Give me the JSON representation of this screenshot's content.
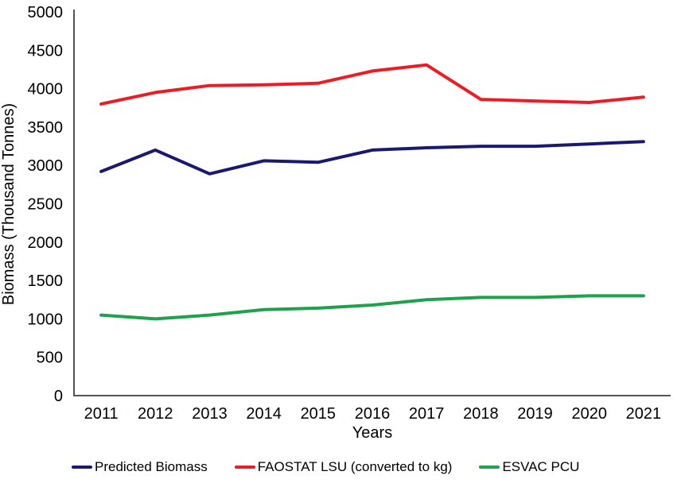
{
  "chart_data": {
    "type": "line",
    "title": "",
    "categories": [
      "2011",
      "2012",
      "2013",
      "2014",
      "2015",
      "2016",
      "2017",
      "2018",
      "2019",
      "2020",
      "2021"
    ],
    "series": [
      {
        "name": "Predicted Biomass",
        "color": "#191970",
        "values": [
          2920,
          3200,
          2890,
          3060,
          3040,
          3200,
          3230,
          3250,
          3250,
          3280,
          3310
        ]
      },
      {
        "name": "FAOSTAT LSU (converted to kg)",
        "color": "#ED1C24",
        "values": [
          3800,
          3950,
          4040,
          4050,
          4070,
          4230,
          4310,
          3860,
          3840,
          3820,
          3890
        ]
      },
      {
        "name": "ESVAC PCU",
        "color": "#1FA14E",
        "values": [
          1050,
          1000,
          1050,
          1120,
          1140,
          1180,
          1250,
          1280,
          1280,
          1300,
          1300
        ]
      }
    ],
    "xlabel": "Years",
    "ylabel": "Biomass (Thousand Tonnes)",
    "ylim": [
      0,
      5000
    ],
    "ytick_step": 500,
    "ytick_labels": [
      "0",
      "500",
      "1000",
      "1500",
      "2000",
      "2500",
      "3000",
      "3500",
      "4000",
      "4500",
      "5000"
    ],
    "grid": false,
    "legend_position": "bottom",
    "axis_color": "#545454",
    "text_color": "#000000"
  }
}
